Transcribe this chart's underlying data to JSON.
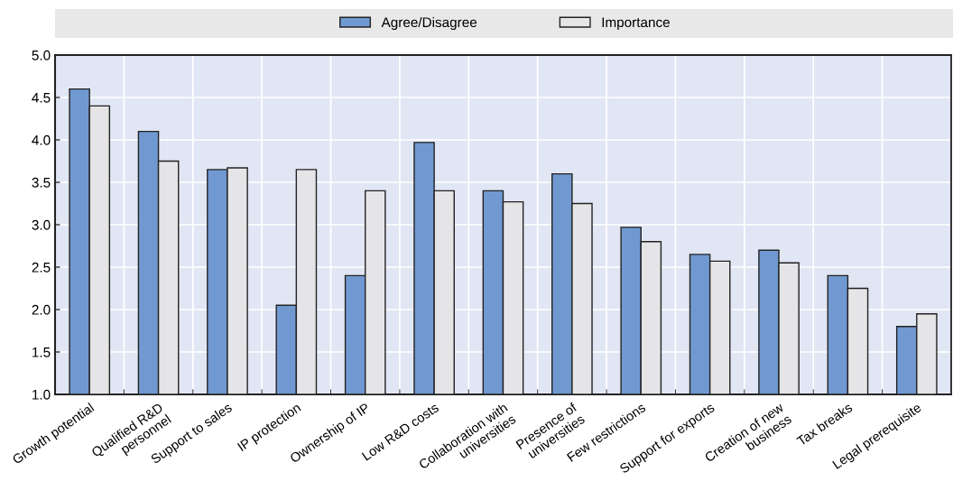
{
  "chart_data": {
    "type": "bar",
    "categories": [
      "Growth potential",
      "Qualified R&D\npersonnel",
      "Support to sales",
      "IP protection",
      "Ownership of IP",
      "Low R&D costs",
      "Collaboration with\nuniversities",
      "Presence of\nuniversities",
      "Few restrictions",
      "Support for exports",
      "Creation of new\nbusiness",
      "Tax breaks",
      "Legal prerequisite"
    ],
    "series": [
      {
        "name": "Agree/Disagree",
        "color": "#7199d1",
        "values": [
          4.6,
          4.1,
          3.65,
          2.05,
          2.4,
          3.97,
          3.4,
          3.6,
          2.97,
          2.65,
          2.7,
          2.4,
          1.8
        ]
      },
      {
        "name": "Importance",
        "color": "#e5e5e8",
        "values": [
          4.4,
          3.75,
          3.67,
          3.65,
          3.4,
          3.4,
          3.27,
          3.25,
          2.8,
          2.57,
          2.55,
          2.25,
          1.95
        ]
      }
    ],
    "ylim": [
      1.0,
      5.0
    ],
    "yticks": [
      {
        "value": 1.0,
        "label": "1.0"
      },
      {
        "value": 1.5,
        "label": "1.5"
      },
      {
        "value": 2.0,
        "label": "2.0"
      },
      {
        "value": 2.5,
        "label": "2.5"
      },
      {
        "value": 3.0,
        "label": "3.0"
      },
      {
        "value": 3.5,
        "label": "3.5"
      },
      {
        "value": 4.0,
        "label": "4.0"
      },
      {
        "value": 4.5,
        "label": "4.5"
      },
      {
        "value": 5.0,
        "label": "5.0"
      }
    ],
    "grid": true,
    "legend": "top"
  }
}
